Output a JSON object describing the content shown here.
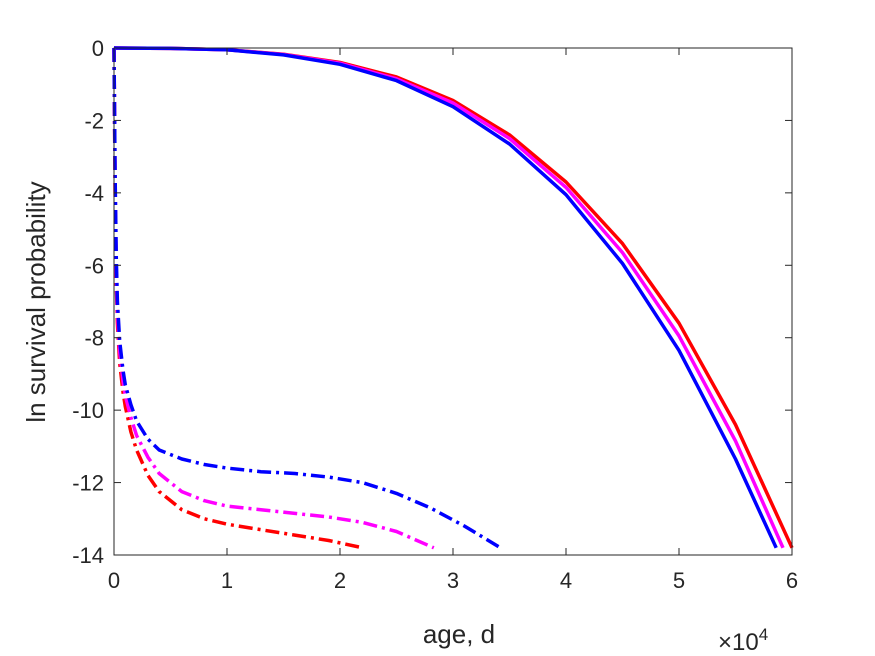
{
  "chart_data": {
    "type": "line",
    "xlabel": "age, d",
    "ylabel": "ln survival probability",
    "x_multiplier_label": "×10",
    "x_multiplier_exponent": "4",
    "xlim": [
      0,
      60000
    ],
    "ylim": [
      -14,
      0
    ],
    "xticks": [
      0,
      10000,
      20000,
      30000,
      40000,
      50000,
      60000
    ],
    "xtick_labels": [
      "0",
      "1",
      "2",
      "3",
      "4",
      "5",
      "6"
    ],
    "yticks": [
      0,
      -2,
      -4,
      -6,
      -8,
      -10,
      -12,
      -14
    ],
    "ytick_labels": [
      "0",
      "-2",
      "-4",
      "-6",
      "-8",
      "-10",
      "-12",
      "-14"
    ],
    "grid": false,
    "series": [
      {
        "color": "#ff0000",
        "style": "solid",
        "x": [
          0,
          5000,
          10000,
          15000,
          20000,
          25000,
          30000,
          35000,
          40000,
          45000,
          50000,
          55000,
          60000
        ],
        "y": [
          0,
          -0.01,
          -0.05,
          -0.17,
          -0.4,
          -0.8,
          -1.45,
          -2.4,
          -3.7,
          -5.4,
          -7.6,
          -10.4,
          -13.8
        ]
      },
      {
        "color": "#ff00ff",
        "style": "solid",
        "x": [
          0,
          5000,
          10000,
          15000,
          20000,
          25000,
          30000,
          35000,
          40000,
          45000,
          50000,
          55000,
          59200
        ],
        "y": [
          0,
          -0.01,
          -0.05,
          -0.18,
          -0.42,
          -0.85,
          -1.52,
          -2.5,
          -3.85,
          -5.65,
          -7.95,
          -10.85,
          -13.8
        ]
      },
      {
        "color": "#0000ff",
        "style": "solid",
        "x": [
          0,
          5000,
          10000,
          15000,
          20000,
          25000,
          30000,
          35000,
          40000,
          45000,
          50000,
          55000,
          58600
        ],
        "y": [
          0,
          -0.01,
          -0.05,
          -0.19,
          -0.45,
          -0.9,
          -1.62,
          -2.65,
          -4.05,
          -5.95,
          -8.35,
          -11.35,
          -13.8
        ]
      },
      {
        "color": "#ff0000",
        "style": "dashdot",
        "x": [
          0,
          100,
          200,
          300,
          500,
          800,
          1000,
          1500,
          2000,
          3000,
          4000,
          6000,
          8000,
          10000,
          13000,
          16000,
          19000,
          22000
        ],
        "y": [
          0,
          -4,
          -6.5,
          -7.6,
          -8.7,
          -9.5,
          -9.9,
          -10.6,
          -11.1,
          -11.8,
          -12.25,
          -12.75,
          -13.0,
          -13.15,
          -13.3,
          -13.45,
          -13.6,
          -13.8
        ]
      },
      {
        "color": "#ff00ff",
        "style": "dashdot",
        "x": [
          0,
          100,
          200,
          300,
          500,
          800,
          1000,
          1500,
          2000,
          3000,
          4000,
          6000,
          8000,
          10000,
          13000,
          16000,
          19000,
          22000,
          25000,
          28300
        ],
        "y": [
          0,
          -3.8,
          -6.2,
          -7.3,
          -8.4,
          -9.2,
          -9.6,
          -10.2,
          -10.7,
          -11.3,
          -11.75,
          -12.25,
          -12.5,
          -12.65,
          -12.75,
          -12.85,
          -12.95,
          -13.1,
          -13.35,
          -13.8
        ]
      },
      {
        "color": "#0000ff",
        "style": "dashdot",
        "x": [
          0,
          100,
          200,
          300,
          500,
          800,
          1000,
          1500,
          2000,
          3000,
          4000,
          6000,
          8000,
          10000,
          13000,
          16000,
          19000,
          22000,
          25000,
          28000,
          31000,
          34200
        ],
        "y": [
          0,
          -3.5,
          -5.8,
          -7.0,
          -8.1,
          -8.9,
          -9.3,
          -9.85,
          -10.3,
          -10.8,
          -11.1,
          -11.35,
          -11.5,
          -11.6,
          -11.7,
          -11.75,
          -11.85,
          -12.0,
          -12.3,
          -12.7,
          -13.2,
          -13.8
        ]
      }
    ]
  }
}
